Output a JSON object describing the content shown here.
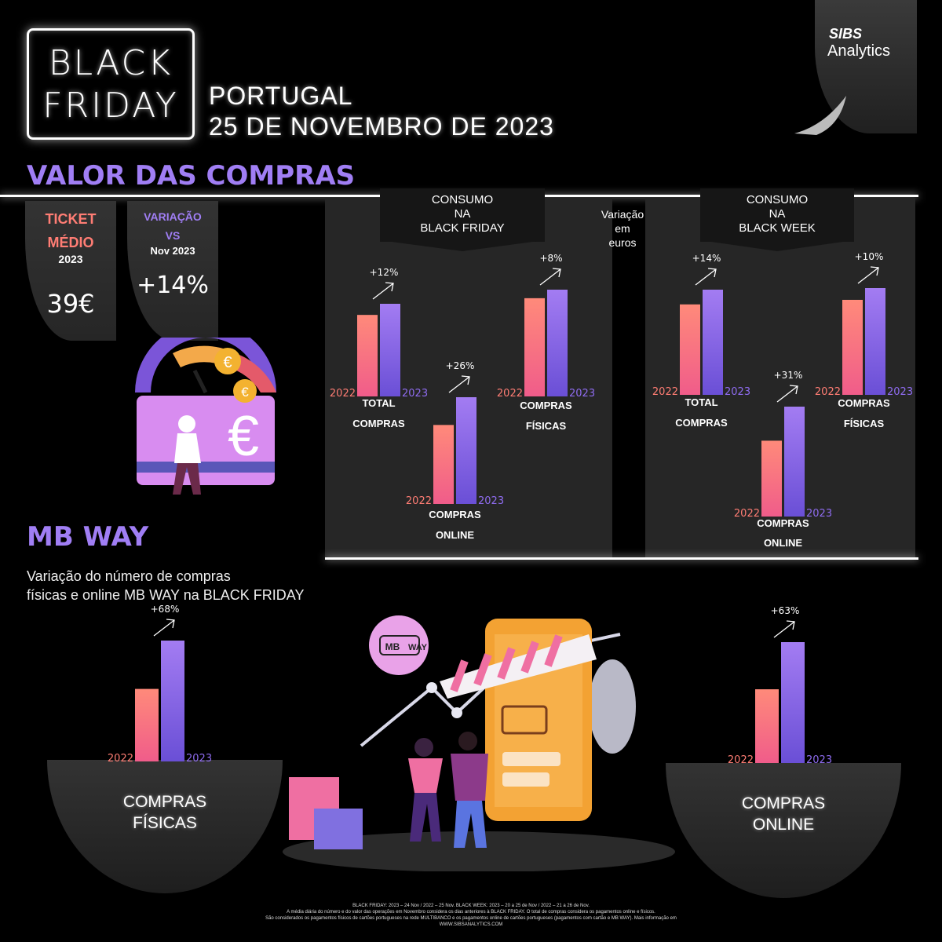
{
  "header": {
    "logo_line1": "BLACK",
    "logo_line2": "FRIDAY",
    "country": "PORTUGAL",
    "date": "25 DE NOVEMBRO DE 2023",
    "brand_top": "SIBS",
    "brand_bottom": "Analytics"
  },
  "valor": {
    "title": "VALOR DAS COMPRAS",
    "ticket": {
      "label1": "TICKET",
      "label2": "MÉDIO",
      "year": "2023",
      "value": "39€"
    },
    "variacao": {
      "label1": "VARIAÇÃO",
      "label2": "VS",
      "period": "Nov 2023",
      "value": "+14%"
    },
    "center_note": [
      "Variação",
      "em",
      "euros"
    ],
    "panels": [
      {
        "ribbon": [
          "CONSUMO",
          "NA",
          "BLACK FRIDAY"
        ]
      },
      {
        "ribbon": [
          "CONSUMO",
          "NA",
          "BLACK WEEK"
        ]
      }
    ]
  },
  "chart_data": [
    {
      "type": "bar",
      "panel": "CONSUMO NA BLACK FRIDAY",
      "title": "TOTAL COMPRAS",
      "categories": [
        "2022",
        "2023"
      ],
      "values": [
        88,
        100
      ],
      "change": "+12%"
    },
    {
      "type": "bar",
      "panel": "CONSUMO NA BLACK FRIDAY",
      "title": "COMPRAS ONLINE",
      "categories": [
        "2022",
        "2023"
      ],
      "values": [
        74,
        100
      ],
      "change": "+26%"
    },
    {
      "type": "bar",
      "panel": "CONSUMO NA BLACK FRIDAY",
      "title": "COMPRAS FÍSICAS",
      "categories": [
        "2022",
        "2023"
      ],
      "values": [
        92,
        100
      ],
      "change": "+8%"
    },
    {
      "type": "bar",
      "panel": "CONSUMO NA BLACK WEEK",
      "title": "TOTAL COMPRAS",
      "categories": [
        "2022",
        "2023"
      ],
      "values": [
        86,
        100
      ],
      "change": "+14%"
    },
    {
      "type": "bar",
      "panel": "CONSUMO NA BLACK WEEK",
      "title": "COMPRAS ONLINE",
      "categories": [
        "2022",
        "2023"
      ],
      "values": [
        69,
        100
      ],
      "change": "+31%"
    },
    {
      "type": "bar",
      "panel": "CONSUMO NA BLACK WEEK",
      "title": "COMPRAS FÍSICAS",
      "categories": [
        "2022",
        "2023"
      ],
      "values": [
        89,
        100
      ],
      "change": "+10%"
    },
    {
      "type": "bar",
      "panel": "MB WAY",
      "title": "COMPRAS FÍSICAS",
      "categories": [
        "2022",
        "2023"
      ],
      "values": [
        60,
        100
      ],
      "change": "+68%"
    },
    {
      "type": "bar",
      "panel": "MB WAY",
      "title": "COMPRAS ONLINE",
      "categories": [
        "2022",
        "2023"
      ],
      "values": [
        61,
        100
      ],
      "change": "+63%"
    }
  ],
  "mbway": {
    "title": "MB WAY",
    "subtitle1": "Variação do número de compras",
    "subtitle2": "físicas e online MB WAY na BLACK FRIDAY",
    "badge": "WAY",
    "badge_mb": "MB",
    "left_label": [
      "COMPRAS",
      "FÍSICAS"
    ],
    "right_label": [
      "COMPRAS",
      "ONLINE"
    ]
  },
  "footer": [
    "BLACK FRIDAY: 2023 – 24 Nov / 2022 – 25 Nov. BLACK WEEK: 2023 – 20 a 25 de Nov / 2022 – 21 a 26 de Nov.",
    "A média diária do número e do valor das operações em Novembro considera os dias anteriores à BLACK FRIDAY. O total de compras considera os pagamentos online e físicos.",
    "São considerados os pagamentos físicos de cartões portugueses na rede MULTIBANCO e os pagamentos online de cartões portugueses (pagamentos com cartão e MB WAY). Mais informação em",
    "WWW.SIBSANALYTICS.COM"
  ],
  "colors": {
    "accent": "#a07ef4",
    "bar2022": "#ff7d74",
    "bar2023": "#8f6cf0"
  }
}
